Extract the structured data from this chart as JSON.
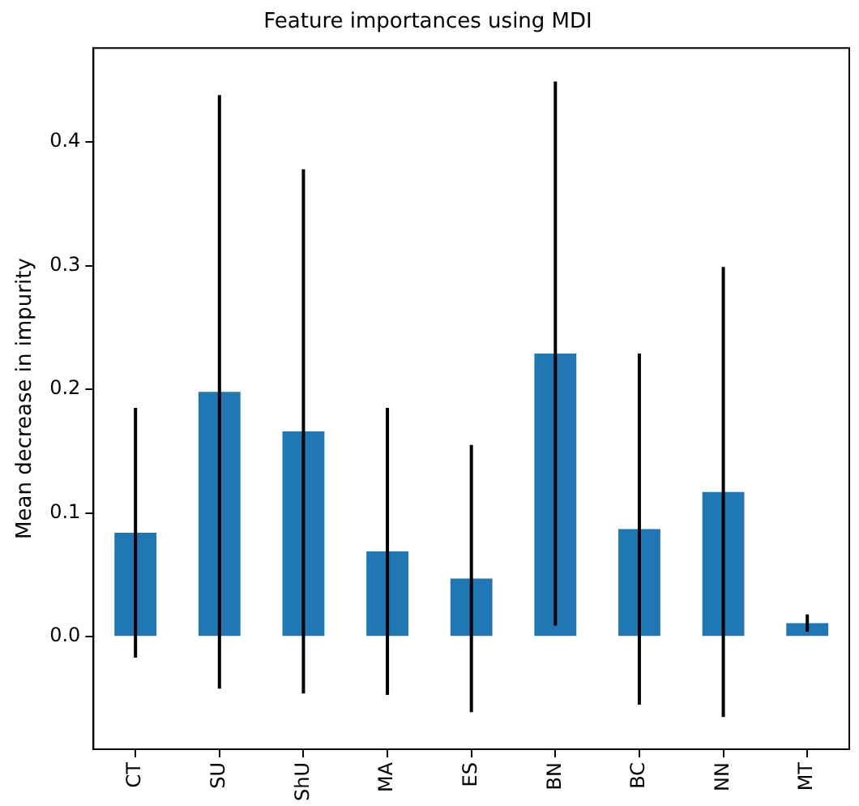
{
  "chart_data": {
    "type": "bar",
    "title": "Feature importances using MDI",
    "ylabel": "Mean decrease in impurity",
    "categories": [
      "CT",
      "SU",
      "ShU",
      "MA",
      "ES",
      "BN",
      "BC",
      "NN",
      "MT"
    ],
    "values": [
      0.084,
      0.198,
      0.166,
      0.069,
      0.047,
      0.229,
      0.087,
      0.117,
      0.011
    ],
    "errors": [
      0.101,
      0.24,
      0.212,
      0.116,
      0.108,
      0.22,
      0.142,
      0.182,
      0.007
    ],
    "color": "#1f77b4",
    "ylim": [
      -0.091,
      0.476
    ],
    "yticks": [
      {
        "value": 0,
        "label": "0.0"
      },
      0.1,
      0.2,
      0.3,
      0.4
    ],
    "grid": false,
    "legend": false
  }
}
